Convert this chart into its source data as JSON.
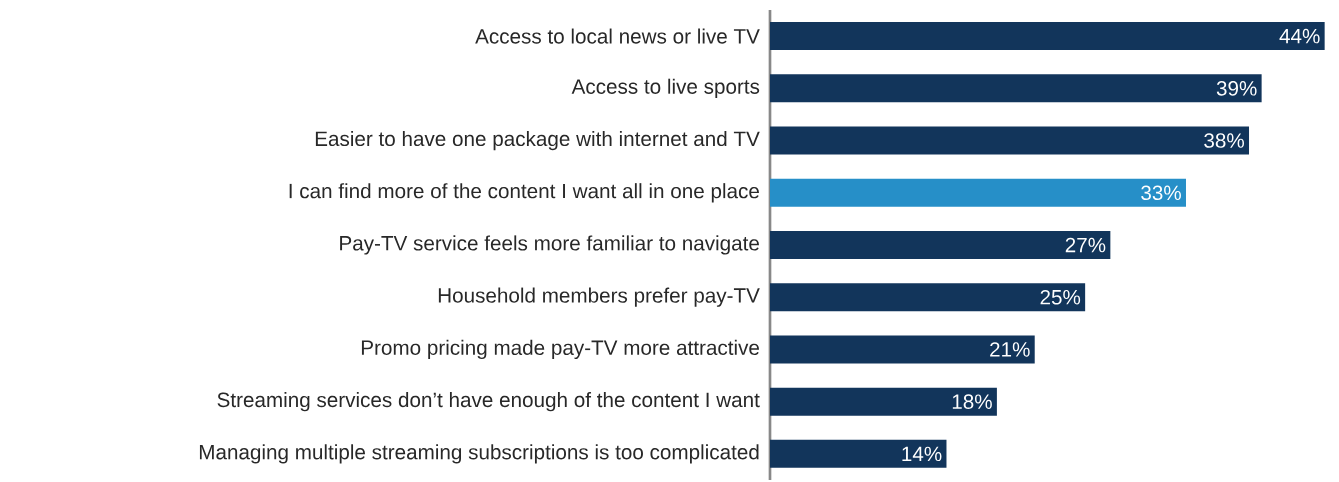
{
  "chart_data": {
    "type": "bar",
    "orientation": "horizontal",
    "categories": [
      "Access to local news or live TV",
      "Access to live sports",
      "Easier to have one package with internet and TV",
      "I can find more of the content I want all in one place",
      "Pay-TV service feels more familiar to navigate",
      "Household members prefer pay-TV",
      "Promo pricing made pay-TV more attractive",
      "Streaming services don’t have enough of the content I want",
      "Managing multiple streaming subscriptions is too complicated"
    ],
    "values": [
      44,
      39,
      38,
      33,
      27,
      25,
      21,
      18,
      14
    ],
    "value_labels": [
      "44%",
      "39%",
      "38%",
      "33%",
      "27%",
      "25%",
      "21%",
      "18%",
      "14%"
    ],
    "colors": [
      "#12355b",
      "#12355b",
      "#12355b",
      "#268fc8",
      "#12355b",
      "#12355b",
      "#12355b",
      "#12355b",
      "#12355b"
    ]
  }
}
